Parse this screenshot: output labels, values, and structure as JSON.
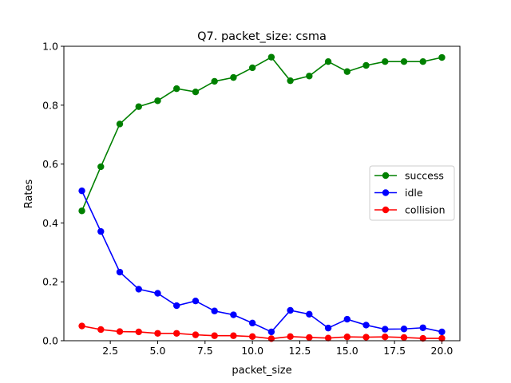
{
  "chart_data": {
    "type": "line",
    "title": "Q7. packet_size: csma",
    "xlabel": "packet_size",
    "ylabel": "Rates",
    "xlim": [
      0.05,
      20.95
    ],
    "ylim": [
      0,
      1.0
    ],
    "xticks": [
      2.5,
      5.0,
      7.5,
      10.0,
      12.5,
      15.0,
      17.5,
      20.0
    ],
    "xtick_labels": [
      "2.5",
      "5.0",
      "7.5",
      "10.0",
      "12.5",
      "15.0",
      "17.5",
      "20.0"
    ],
    "yticks": [
      0.0,
      0.2,
      0.4,
      0.6,
      0.8,
      1.0
    ],
    "ytick_labels": [
      "0.0",
      "0.2",
      "0.4",
      "0.6",
      "0.8",
      "1.0"
    ],
    "grid": false,
    "legend_position": "center-right",
    "x": [
      1,
      2,
      3,
      4,
      5,
      6,
      7,
      8,
      9,
      10,
      11,
      12,
      13,
      14,
      15,
      16,
      17,
      18,
      19,
      20
    ],
    "series": [
      {
        "name": "success",
        "color": "#008000",
        "values": [
          0.441,
          0.591,
          0.736,
          0.795,
          0.815,
          0.856,
          0.845,
          0.881,
          0.894,
          0.927,
          0.963,
          0.883,
          0.899,
          0.948,
          0.914,
          0.935,
          0.948,
          0.948,
          0.948,
          0.962
        ]
      },
      {
        "name": "idle",
        "color": "#0000ff",
        "values": [
          0.509,
          0.371,
          0.233,
          0.175,
          0.161,
          0.119,
          0.135,
          0.101,
          0.088,
          0.06,
          0.03,
          0.103,
          0.09,
          0.043,
          0.073,
          0.053,
          0.039,
          0.04,
          0.044,
          0.03
        ]
      },
      {
        "name": "collision",
        "color": "#ff0000",
        "values": [
          0.05,
          0.038,
          0.031,
          0.03,
          0.025,
          0.025,
          0.02,
          0.017,
          0.017,
          0.014,
          0.007,
          0.014,
          0.011,
          0.009,
          0.013,
          0.012,
          0.013,
          0.011,
          0.008,
          0.008
        ]
      }
    ]
  }
}
